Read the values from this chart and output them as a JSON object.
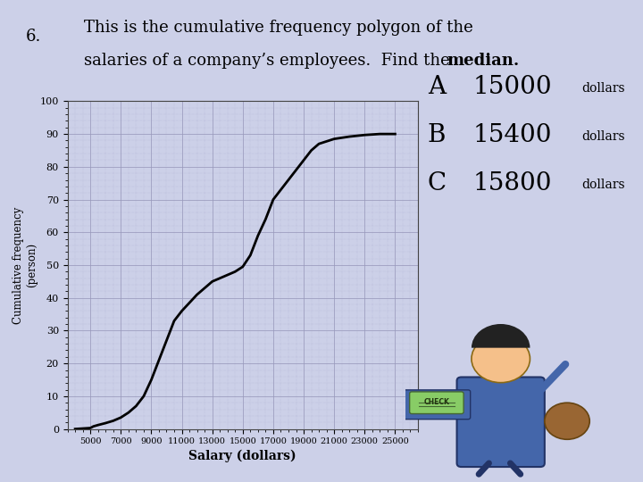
{
  "title_number": "6.",
  "title_line1": "This is the cumulative frequency polygon of the",
  "title_line2": "salaries of a company’s employees.  Find the ",
  "title_bold": "median.",
  "background_color": "#ccd0e8",
  "grid_color_major": "#9999bb",
  "grid_color_minor": "#aaaacc",
  "curve_color": "#000000",
  "curve_linewidth": 2.0,
  "xlabel": "Salary (dollars)",
  "ylabel": "Cumulative frequency\n(person)",
  "xlim": [
    3500,
    26500
  ],
  "ylim": [
    0,
    100
  ],
  "xticks": [
    5000,
    7000,
    9000,
    11000,
    13000,
    15000,
    17000,
    19000,
    21000,
    23000,
    25000
  ],
  "yticks": [
    0,
    10,
    20,
    30,
    40,
    50,
    60,
    70,
    80,
    90,
    100
  ],
  "x_data": [
    4000,
    5000,
    5200,
    5500,
    6000,
    6500,
    7000,
    7500,
    8000,
    8500,
    9000,
    9500,
    10000,
    10500,
    11000,
    11500,
    12000,
    12500,
    13000,
    13500,
    14000,
    14500,
    15000,
    15500,
    16000,
    16500,
    17000,
    17500,
    18000,
    18500,
    19000,
    19500,
    20000,
    21000,
    22000,
    23000,
    24000,
    25000
  ],
  "y_data": [
    0,
    0.3,
    0.8,
    1.2,
    1.8,
    2.5,
    3.5,
    5,
    7,
    10,
    15,
    21,
    27,
    33,
    36,
    38.5,
    41,
    43,
    45,
    46,
    47,
    48,
    49.5,
    53,
    59,
    64,
    70,
    73,
    76,
    79,
    82,
    85,
    87,
    88.5,
    89.2,
    89.7,
    90,
    90
  ],
  "options": [
    {
      "label": "A",
      "value": "15000",
      "unit": "dollars"
    },
    {
      "label": "B",
      "value": "15400",
      "unit": "dollars"
    },
    {
      "label": "C",
      "value": "15800",
      "unit": "dollars"
    }
  ],
  "title_fontsize": 13,
  "number_fontsize": 13,
  "option_label_fontsize": 20,
  "option_value_fontsize": 20,
  "option_unit_fontsize": 10
}
